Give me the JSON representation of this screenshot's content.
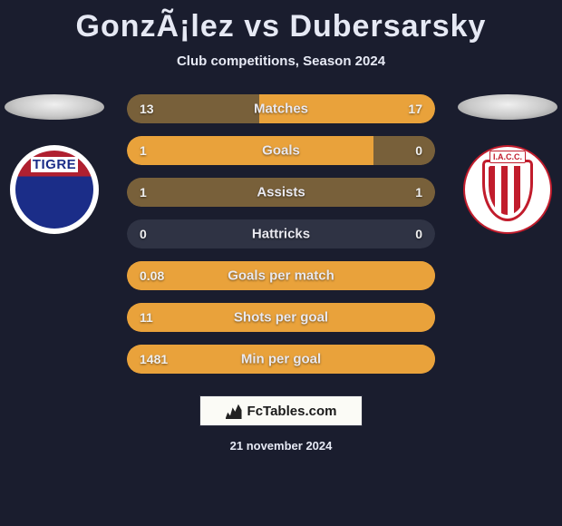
{
  "title": "GonzÃ¡lez vs Dubersarsky",
  "subtitle": "Club competitions, Season 2024",
  "footer_brand": "FcTables.com",
  "footer_date": "21 november 2024",
  "player_left": {
    "club_abbr": "TIGRE"
  },
  "player_right": {
    "club_abbr": "I.A.C.C."
  },
  "colors": {
    "background": "#1a1d2e",
    "track": "#2f3344",
    "lowlight": "#78603a",
    "highlight": "#e9a23b",
    "neutral": "#2f3344",
    "text": "#e6e9f4"
  },
  "stats": [
    {
      "label": "Matches",
      "left_value": "13",
      "right_value": "17",
      "left_pct": 43,
      "right_pct": 57,
      "left_color": "#78603a",
      "right_color": "#e9a23b",
      "track_color": "#78603a"
    },
    {
      "label": "Goals",
      "left_value": "1",
      "right_value": "0",
      "left_pct": 80,
      "right_pct": 20,
      "left_color": "#e9a23b",
      "right_color": "#78603a",
      "track_color": "#78603a"
    },
    {
      "label": "Assists",
      "left_value": "1",
      "right_value": "1",
      "left_pct": 50,
      "right_pct": 50,
      "left_color": "#78603a",
      "right_color": "#78603a",
      "track_color": "#78603a"
    },
    {
      "label": "Hattricks",
      "left_value": "0",
      "right_value": "0",
      "left_pct": 0,
      "right_pct": 0,
      "left_color": "#2f3344",
      "right_color": "#2f3344",
      "track_color": "#2f3344"
    },
    {
      "label": "Goals per match",
      "left_value": "0.08",
      "right_value": "",
      "left_pct": 100,
      "right_pct": 0,
      "left_color": "#e9a23b",
      "right_color": "#2f3344",
      "track_color": "#e9a23b"
    },
    {
      "label": "Shots per goal",
      "left_value": "11",
      "right_value": "",
      "left_pct": 100,
      "right_pct": 0,
      "left_color": "#e9a23b",
      "right_color": "#2f3344",
      "track_color": "#e9a23b"
    },
    {
      "label": "Min per goal",
      "left_value": "1481",
      "right_value": "",
      "left_pct": 100,
      "right_pct": 0,
      "left_color": "#e9a23b",
      "right_color": "#2f3344",
      "track_color": "#e9a23b"
    }
  ]
}
